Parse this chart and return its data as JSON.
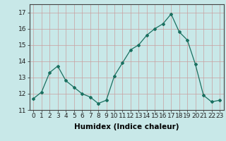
{
  "x": [
    0,
    1,
    2,
    3,
    4,
    5,
    6,
    7,
    8,
    9,
    10,
    11,
    12,
    13,
    14,
    15,
    16,
    17,
    18,
    19,
    20,
    21,
    22,
    23
  ],
  "y": [
    11.7,
    12.1,
    13.3,
    13.7,
    12.8,
    12.4,
    12.0,
    11.8,
    11.4,
    11.6,
    13.1,
    13.9,
    14.7,
    15.0,
    15.6,
    16.0,
    16.3,
    16.9,
    15.8,
    15.3,
    13.8,
    11.9,
    11.5,
    11.6
  ],
  "line_color": "#1a7060",
  "marker": "D",
  "marker_size": 2,
  "bg_color": "#c8e8e8",
  "grid_color": "#c8a0a0",
  "xlabel": "Humidex (Indice chaleur)",
  "ylim": [
    11,
    17.5
  ],
  "xlim": [
    -0.5,
    23.5
  ],
  "yticks": [
    11,
    12,
    13,
    14,
    15,
    16,
    17
  ],
  "xticks": [
    0,
    1,
    2,
    3,
    4,
    5,
    6,
    7,
    8,
    9,
    10,
    11,
    12,
    13,
    14,
    15,
    16,
    17,
    18,
    19,
    20,
    21,
    22,
    23
  ],
  "xlabel_fontsize": 7.5,
  "tick_fontsize": 6.5
}
